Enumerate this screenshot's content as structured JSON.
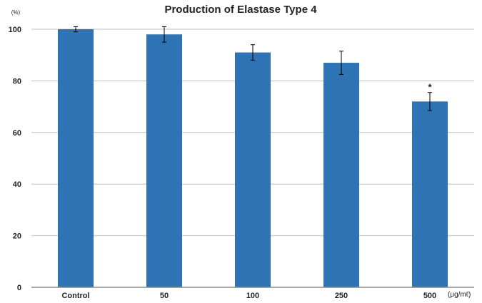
{
  "chart_data": {
    "type": "bar",
    "title": "Production of Elastase Type 4",
    "ylabel": "(%)",
    "xunit": "(μg/mℓ)",
    "categories": [
      "Control",
      "50",
      "100",
      "250",
      "500"
    ],
    "values": [
      100,
      98,
      91,
      87,
      72
    ],
    "error": [
      1,
      3,
      3,
      4.5,
      3.5
    ],
    "significance": [
      "",
      "",
      "",
      "",
      "*"
    ],
    "ylim": [
      0,
      100
    ],
    "yticks": [
      "0",
      "20",
      "40",
      "60",
      "80",
      "100"
    ],
    "grid": true,
    "bar_color": "#2e74b5",
    "grid_color": "#bfbfbf"
  }
}
